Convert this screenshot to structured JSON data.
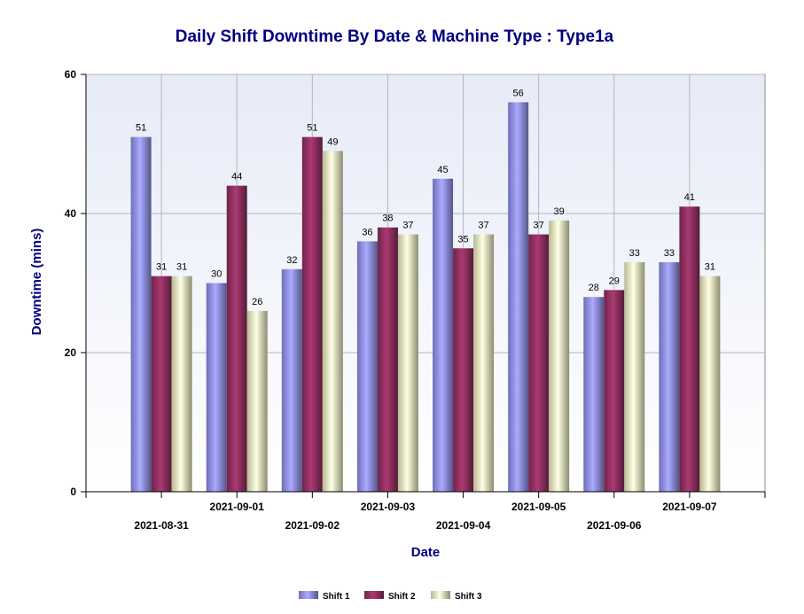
{
  "chart_data": {
    "type": "bar",
    "title": "Daily Shift Downtime By Date & Machine Type : Type1a",
    "xlabel": "Date",
    "ylabel": "Downtime (mins)",
    "ylim": [
      0,
      60
    ],
    "yticks": [
      "0",
      "20",
      "40",
      "60"
    ],
    "grid": true,
    "legend_position": "bottom",
    "categories": [
      "2021-08-31",
      "2021-09-01",
      "2021-09-02",
      "2021-09-03",
      "2021-09-04",
      "2021-09-05",
      "2021-09-06",
      "2021-09-07"
    ],
    "series": [
      {
        "name": "Shift 1",
        "color": "#9999ff",
        "values": [
          51,
          30,
          32,
          36,
          45,
          56,
          28,
          33
        ]
      },
      {
        "name": "Shift 2",
        "color": "#993366",
        "values": [
          31,
          44,
          51,
          38,
          35,
          37,
          29,
          41
        ]
      },
      {
        "name": "Shift 3",
        "color": "#ffffcc",
        "values": [
          31,
          26,
          49,
          37,
          37,
          39,
          33,
          31
        ]
      }
    ]
  }
}
